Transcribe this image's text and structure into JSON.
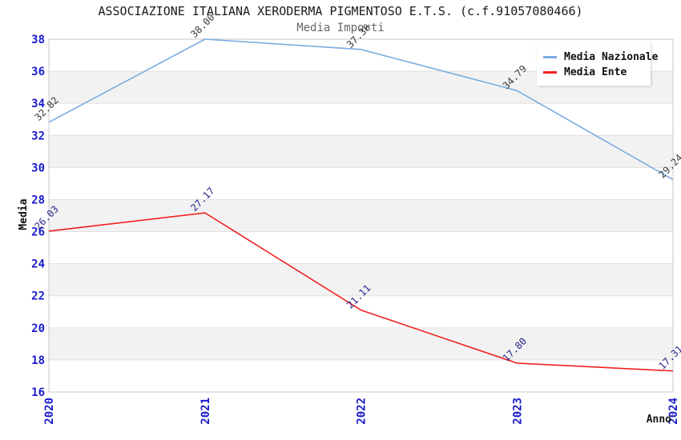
{
  "header": {
    "title": "ASSOCIAZIONE ITALIANA XERODERMA PIGMENTOSO E.T.S. (c.f.91057080466)",
    "subtitle": "Media Importi"
  },
  "chart_data": {
    "type": "line",
    "x": [
      "2020",
      "2021",
      "2022",
      "2023",
      "2024"
    ],
    "series": [
      {
        "name": "Media Nazionale",
        "color": "#7aade0",
        "label_color": "#3a3a3a",
        "values": [
          32.82,
          38.0,
          37.36,
          34.79,
          29.24
        ]
      },
      {
        "name": "Media Ente",
        "color": "#ee2222",
        "label_color": "#26268c",
        "values": [
          26.03,
          27.17,
          21.11,
          17.8,
          17.31
        ]
      }
    ],
    "xlabel": "Anno",
    "ylabel": "Media",
    "ylim": [
      16,
      38
    ],
    "ytick_step": 2,
    "yticks": [
      16,
      18,
      20,
      22,
      24,
      26,
      28,
      30,
      32,
      34,
      36,
      38
    ],
    "legend_position": "top-right",
    "grid": "banded",
    "band_colors": [
      "#ffffff",
      "#f2f2f2"
    ],
    "band_line_color": "#e0e0e0",
    "plot_border_color": "#c9c9c9",
    "tick_label_color": "#1a1acc",
    "axis_title_color": "#111111",
    "value_label_decimals": 2
  }
}
